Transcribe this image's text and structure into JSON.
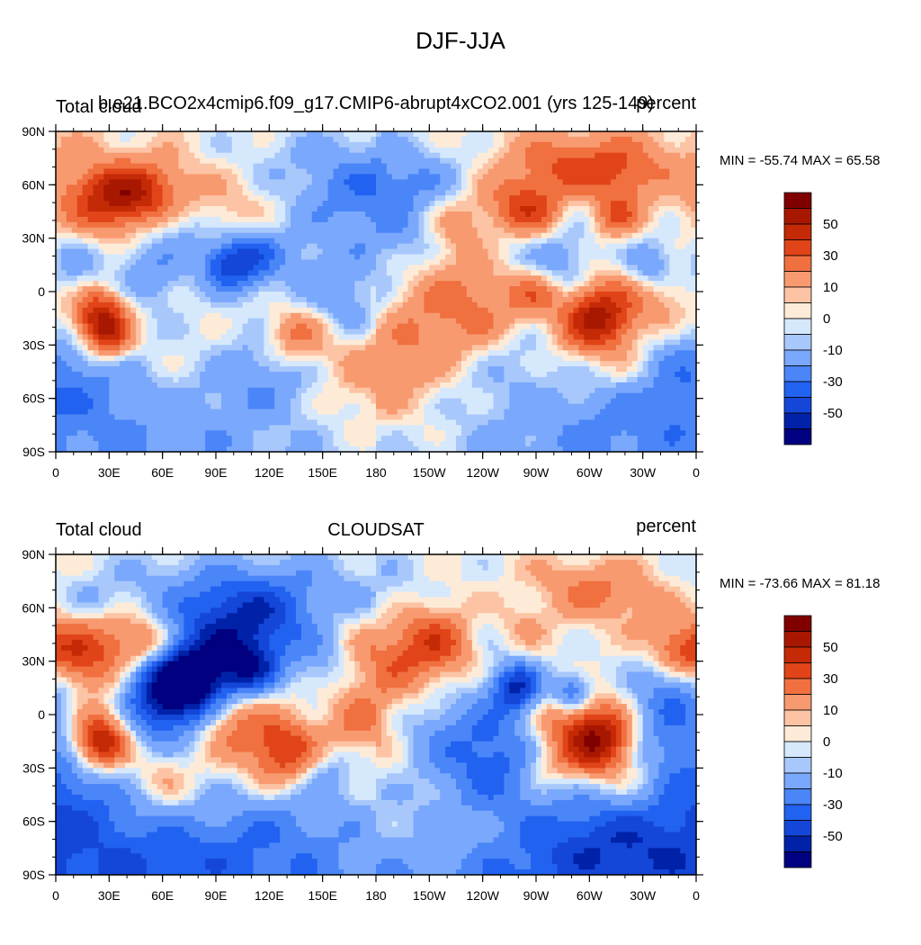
{
  "figure_title": "DJF-JJA",
  "colors": {
    "levels": [
      "#000080",
      "#0022a8",
      "#1446d8",
      "#2262f0",
      "#4a86f8",
      "#7aa8fc",
      "#a8c8fc",
      "#d6e8fc",
      "#fdebd8",
      "#fcc4a4",
      "#f89a70",
      "#f07040",
      "#e04418",
      "#c42a06",
      "#a81800",
      "#800000"
    ]
  },
  "panels": [
    {
      "left_label": "Total cloud",
      "center_label": "b.e21.BCO2x4cmip6.f09_g17.CMIP6-abrupt4xCO2.001 (yrs 125-149)",
      "right_label": "percent",
      "minmax": "MIN = -55.74 MAX =  65.58",
      "lat_ticks": [
        "90N",
        "60N",
        "30N",
        "0",
        "30S",
        "60S",
        "90S"
      ],
      "lon_ticks": [
        "0",
        "30E",
        "60E",
        "90E",
        "120E",
        "150E",
        "180",
        "150W",
        "120W",
        "90W",
        "60W",
        "30W",
        "0"
      ],
      "colorbar_labels": [
        "50",
        "30",
        "10",
        "0",
        "-10",
        "-30",
        "-50"
      ],
      "field": [
        [
          45,
          55,
          12,
          35
        ],
        [
          25,
          50,
          14,
          30
        ],
        [
          100,
          40,
          20,
          20
        ],
        [
          140,
          55,
          28,
          -15
        ],
        [
          -95,
          45,
          12,
          35
        ],
        [
          -70,
          55,
          12,
          -20
        ],
        [
          -45,
          42,
          8,
          25
        ],
        [
          175,
          60,
          15,
          -15
        ],
        [
          -75,
          65,
          14,
          30
        ],
        [
          -45,
          65,
          12,
          25
        ],
        [
          -150,
          60,
          12,
          -10
        ],
        [
          -165,
          30,
          18,
          -20
        ],
        [
          -135,
          38,
          12,
          15
        ],
        [
          -80,
          15,
          15,
          -25
        ],
        [
          -25,
          15,
          10,
          -25
        ],
        [
          10,
          15,
          12,
          -15
        ],
        [
          55,
          12,
          15,
          -20
        ],
        [
          95,
          15,
          10,
          -40
        ],
        [
          110,
          20,
          12,
          -35
        ],
        [
          25,
          -15,
          11,
          55
        ],
        [
          -55,
          -15,
          14,
          55
        ],
        [
          30,
          -28,
          8,
          25
        ],
        [
          135,
          -25,
          12,
          30
        ],
        [
          -150,
          -10,
          30,
          18
        ],
        [
          -110,
          -15,
          25,
          15
        ],
        [
          -20,
          -5,
          15,
          18
        ],
        [
          -95,
          -30,
          14,
          -15
        ],
        [
          170,
          -10,
          15,
          -15
        ],
        [
          0,
          -50,
          25,
          -20
        ],
        [
          120,
          -45,
          18,
          -20
        ],
        [
          -120,
          -50,
          20,
          -15
        ],
        [
          0,
          -75,
          35,
          -12
        ],
        [
          100,
          -80,
          20,
          -8
        ],
        [
          -60,
          -80,
          25,
          -8
        ],
        [
          150,
          5,
          20,
          -12
        ],
        [
          -175,
          -45,
          20,
          12
        ],
        [
          -35,
          -45,
          10,
          10
        ],
        [
          -90,
          0,
          10,
          25
        ],
        [
          0,
          85,
          50,
          5
        ],
        [
          -110,
          25,
          12,
          -10
        ],
        [
          75,
          35,
          10,
          -15
        ]
      ]
    },
    {
      "left_label": "Total cloud",
      "center_label": "CLOUDSAT",
      "right_label": "percent",
      "minmax": "MIN = -73.66 MAX =  81.18",
      "lat_ticks": [
        "90N",
        "60N",
        "30N",
        "0",
        "30S",
        "60S",
        "90S"
      ],
      "lon_ticks": [
        "0",
        "30E",
        "60E",
        "90E",
        "120E",
        "150E",
        "180",
        "150W",
        "120W",
        "90W",
        "60W",
        "30W",
        "0"
      ],
      "colorbar_labels": [
        "50",
        "30",
        "10",
        "0",
        "-10",
        "-30",
        "-50"
      ],
      "field": [
        [
          15,
          32,
          15,
          40
        ],
        [
          -10,
          35,
          10,
          30
        ],
        [
          50,
          40,
          10,
          30
        ],
        [
          95,
          52,
          20,
          -35
        ],
        [
          120,
          55,
          18,
          -25
        ],
        [
          80,
          20,
          15,
          -60
        ],
        [
          60,
          12,
          15,
          -50
        ],
        [
          110,
          25,
          10,
          -40
        ],
        [
          150,
          30,
          12,
          -15
        ],
        [
          -160,
          35,
          20,
          20
        ],
        [
          -140,
          45,
          15,
          25
        ],
        [
          -175,
          25,
          20,
          15
        ],
        [
          -100,
          15,
          10,
          -50
        ],
        [
          -70,
          12,
          8,
          -40
        ],
        [
          -10,
          15,
          15,
          -25
        ],
        [
          25,
          -15,
          11,
          60
        ],
        [
          -55,
          -15,
          14,
          65
        ],
        [
          130,
          -22,
          14,
          45
        ],
        [
          100,
          -5,
          15,
          25
        ],
        [
          170,
          -5,
          12,
          20
        ],
        [
          -150,
          -10,
          25,
          -20
        ],
        [
          -110,
          -20,
          20,
          -25
        ],
        [
          -20,
          -15,
          20,
          -15
        ],
        [
          60,
          -15,
          15,
          -10
        ],
        [
          -85,
          -30,
          10,
          15
        ],
        [
          0,
          -50,
          25,
          -15
        ],
        [
          150,
          -50,
          25,
          -12
        ],
        [
          -110,
          -55,
          25,
          -12
        ],
        [
          0,
          -75,
          35,
          -30
        ],
        [
          -60,
          -75,
          20,
          -20
        ],
        [
          110,
          -75,
          25,
          -20
        ],
        [
          -30,
          -40,
          12,
          15
        ],
        [
          60,
          -35,
          12,
          18
        ],
        [
          -120,
          50,
          12,
          -20
        ],
        [
          -100,
          50,
          10,
          15
        ],
        [
          -60,
          70,
          12,
          20
        ],
        [
          -170,
          60,
          15,
          -15
        ],
        [
          20,
          65,
          10,
          -10
        ],
        [
          -30,
          60,
          12,
          10
        ],
        [
          150,
          -30,
          10,
          -15
        ],
        [
          -175,
          -25,
          20,
          12
        ],
        [
          -80,
          0,
          15,
          20
        ]
      ]
    }
  ]
}
